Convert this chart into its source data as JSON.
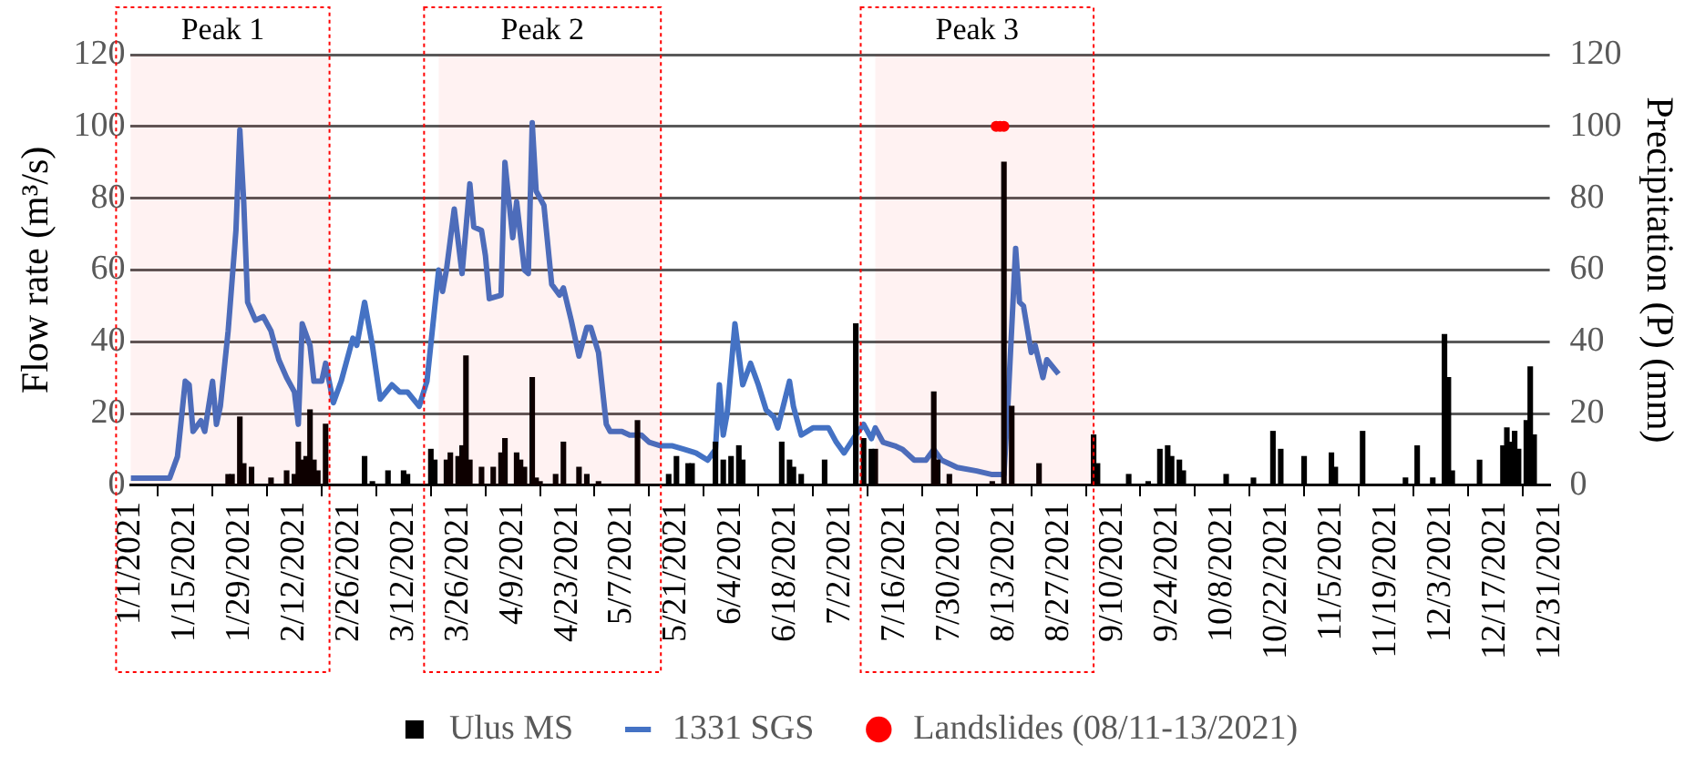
{
  "chart_data": {
    "type": "line",
    "ylabel": "Flow rate (m³/s)",
    "y2label": "Precipitation (P) (mm)",
    "xlim": [
      "2021-01-01",
      "2021-12-31"
    ],
    "xticks": [
      {
        "value": "2021-01-01",
        "label": "1/1/2021"
      },
      {
        "value": "2021-01-15",
        "label": "1/15/2021"
      },
      {
        "value": "2021-01-29",
        "label": "1/29/2021"
      },
      {
        "value": "2021-02-12",
        "label": "2/12/2021"
      },
      {
        "value": "2021-02-26",
        "label": "2/26/2021"
      },
      {
        "value": "2021-03-12",
        "label": "3/12/2021"
      },
      {
        "value": "2021-03-26",
        "label": "3/26/2021"
      },
      {
        "value": "2021-04-09",
        "label": "4/9/2021"
      },
      {
        "value": "2021-04-23",
        "label": "4/23/2021"
      },
      {
        "value": "2021-05-07",
        "label": "5/7/2021"
      },
      {
        "value": "2021-05-21",
        "label": "5/21/2021"
      },
      {
        "value": "2021-06-04",
        "label": "6/4/2021"
      },
      {
        "value": "2021-06-18",
        "label": "6/18/2021"
      },
      {
        "value": "2021-07-02",
        "label": "7/2/2021"
      },
      {
        "value": "2021-07-16",
        "label": "7/16/2021"
      },
      {
        "value": "2021-07-30",
        "label": "7/30/2021"
      },
      {
        "value": "2021-08-13",
        "label": "8/13/2021"
      },
      {
        "value": "2021-08-27",
        "label": "8/27/2021"
      },
      {
        "value": "2021-09-10",
        "label": "9/10/2021"
      },
      {
        "value": "2021-09-24",
        "label": "9/24/2021"
      },
      {
        "value": "2021-10-08",
        "label": "10/8/2021"
      },
      {
        "value": "2021-10-22",
        "label": "10/22/2021"
      },
      {
        "value": "2021-11-05",
        "label": "11/5/2021"
      },
      {
        "value": "2021-11-19",
        "label": "11/19/2021"
      },
      {
        "value": "2021-12-03",
        "label": "12/3/2021"
      },
      {
        "value": "2021-12-17",
        "label": "12/17/2021"
      },
      {
        "value": "2021-12-31",
        "label": "12/31/2021"
      }
    ],
    "ylim": [
      0,
      120
    ],
    "yticks": [
      0,
      20,
      40,
      60,
      80,
      100,
      120
    ],
    "y2lim": [
      0,
      120
    ],
    "y2ticks": [
      0,
      20,
      40,
      60,
      80,
      100,
      120
    ],
    "grid": "y",
    "legend": "bottom",
    "bands": [
      {
        "axis": "x",
        "from": "2021-01-01",
        "to": "2021-02-21",
        "label": "Peak 1",
        "color": "#ff0000"
      },
      {
        "axis": "x",
        "from": "2021-03-21",
        "to": "2021-05-17",
        "label": "Peak 2",
        "color": "#ff0000"
      },
      {
        "axis": "x",
        "from": "2021-07-11",
        "to": "2021-09-05",
        "label": "Peak 3",
        "color": "#ff0000"
      }
    ],
    "series": [
      {
        "name": "Ulus MS",
        "type": "bar",
        "color": "#000000",
        "x": [
          "2021-01-26",
          "2021-01-27",
          "2021-01-29",
          "2021-01-30",
          "2021-02-01",
          "2021-02-06",
          "2021-02-10",
          "2021-02-12",
          "2021-02-13",
          "2021-02-14",
          "2021-02-15",
          "2021-02-16",
          "2021-02-17",
          "2021-02-18",
          "2021-02-20",
          "2021-03-02",
          "2021-03-04",
          "2021-03-08",
          "2021-03-12",
          "2021-03-13",
          "2021-03-19",
          "2021-03-20",
          "2021-03-23",
          "2021-03-24",
          "2021-03-26",
          "2021-03-27",
          "2021-03-28",
          "2021-03-29",
          "2021-04-01",
          "2021-04-04",
          "2021-04-06",
          "2021-04-07",
          "2021-04-10",
          "2021-04-11",
          "2021-04-12",
          "2021-04-14",
          "2021-04-15",
          "2021-04-16",
          "2021-04-20",
          "2021-04-22",
          "2021-04-26",
          "2021-04-28",
          "2021-05-01",
          "2021-05-11",
          "2021-05-19",
          "2021-05-21",
          "2021-05-24",
          "2021-05-25",
          "2021-05-31",
          "2021-06-02",
          "2021-06-04",
          "2021-06-06",
          "2021-06-07",
          "2021-06-17",
          "2021-06-19",
          "2021-06-20",
          "2021-06-22",
          "2021-06-28",
          "2021-07-06",
          "2021-07-08",
          "2021-07-10",
          "2021-07-11",
          "2021-07-26",
          "2021-07-27",
          "2021-07-30",
          "2021-08-10",
          "2021-08-13",
          "2021-08-15",
          "2021-08-22",
          "2021-09-05",
          "2021-09-06",
          "2021-09-14",
          "2021-09-19",
          "2021-09-22",
          "2021-09-24",
          "2021-09-25",
          "2021-09-27",
          "2021-09-28",
          "2021-10-09",
          "2021-10-16",
          "2021-10-21",
          "2021-10-23",
          "2021-10-29",
          "2021-11-05",
          "2021-11-06",
          "2021-11-13",
          "2021-11-24",
          "2021-11-27",
          "2021-12-01",
          "2021-12-04",
          "2021-12-05",
          "2021-12-06",
          "2021-12-13",
          "2021-12-19",
          "2021-12-20",
          "2021-12-21",
          "2021-12-22",
          "2021-12-23",
          "2021-12-25",
          "2021-12-26",
          "2021-12-27"
        ],
        "values": [
          3,
          3,
          19,
          6,
          5,
          2,
          4,
          3,
          12,
          7,
          8,
          21,
          7,
          4,
          17,
          8,
          1,
          4,
          4,
          3,
          10,
          7,
          7,
          9,
          8,
          11,
          36,
          7,
          5,
          5,
          9,
          13,
          9,
          7,
          5,
          30,
          2,
          1,
          3,
          12,
          5,
          3,
          1,
          18,
          3,
          8,
          6,
          6,
          12,
          7,
          8,
          11,
          7,
          12,
          7,
          5,
          3,
          7,
          45,
          13,
          10,
          10,
          26,
          7,
          3,
          1,
          90,
          22,
          6,
          14,
          6,
          3,
          1,
          10,
          11,
          8,
          7,
          4,
          3,
          2,
          15,
          10,
          8,
          9,
          5,
          15,
          2,
          11,
          2,
          42,
          30,
          4,
          7,
          11,
          16,
          12,
          15,
          10,
          18,
          33,
          14
        ]
      },
      {
        "name": "1331 SGS",
        "color": "#4472c4",
        "marker": "none",
        "x": [
          "2021-01-01",
          "2021-01-11",
          "2021-01-13",
          "2021-01-15",
          "2021-01-16",
          "2021-01-17",
          "2021-01-19",
          "2021-01-20",
          "2021-01-22",
          "2021-01-23",
          "2021-01-24",
          "2021-01-26",
          "2021-01-28",
          "2021-01-29",
          "2021-01-30",
          "2021-01-31",
          "2021-02-02",
          "2021-02-04",
          "2021-02-06",
          "2021-02-08",
          "2021-02-10",
          "2021-02-12",
          "2021-02-13",
          "2021-02-14",
          "2021-02-16",
          "2021-02-17",
          "2021-02-19",
          "2021-02-20",
          "2021-02-22",
          "2021-02-24",
          "2021-02-27",
          "2021-02-28",
          "2021-03-02",
          "2021-03-04",
          "2021-03-06",
          "2021-03-09",
          "2021-03-11",
          "2021-03-13",
          "2021-03-16",
          "2021-03-18",
          "2021-03-21",
          "2021-03-22",
          "2021-03-23",
          "2021-03-25",
          "2021-03-27",
          "2021-03-29",
          "2021-03-30",
          "2021-04-01",
          "2021-04-02",
          "2021-04-03",
          "2021-04-06",
          "2021-04-07",
          "2021-04-09",
          "2021-04-10",
          "2021-04-12",
          "2021-04-13",
          "2021-04-14",
          "2021-04-15",
          "2021-04-17",
          "2021-04-19",
          "2021-04-21",
          "2021-04-22",
          "2021-04-24",
          "2021-04-26",
          "2021-04-28",
          "2021-04-29",
          "2021-05-01",
          "2021-05-03",
          "2021-05-04",
          "2021-05-07",
          "2021-05-09",
          "2021-05-12",
          "2021-05-14",
          "2021-05-17",
          "2021-05-20",
          "2021-05-23",
          "2021-05-26",
          "2021-05-29",
          "2021-05-31",
          "2021-06-01",
          "2021-06-02",
          "2021-06-03",
          "2021-06-05",
          "2021-06-07",
          "2021-06-09",
          "2021-06-11",
          "2021-06-13",
          "2021-06-15",
          "2021-06-16",
          "2021-06-19",
          "2021-06-20",
          "2021-06-22",
          "2021-06-25",
          "2021-06-29",
          "2021-07-01",
          "2021-07-03",
          "2021-07-06",
          "2021-07-08",
          "2021-07-10",
          "2021-07-11",
          "2021-07-13",
          "2021-07-16",
          "2021-07-18",
          "2021-07-21",
          "2021-07-24",
          "2021-07-26",
          "2021-07-28",
          "2021-08-01",
          "2021-08-06",
          "2021-08-10",
          "2021-08-13",
          "2021-08-14",
          "2021-08-16",
          "2021-08-17",
          "2021-08-18",
          "2021-08-20",
          "2021-08-21",
          "2021-08-23",
          "2021-08-24",
          "2021-08-27"
        ],
        "values": [
          2,
          2,
          8,
          29,
          28,
          15,
          18,
          15,
          29,
          17,
          22,
          43,
          71,
          99,
          79,
          51,
          46,
          47,
          43,
          35,
          30,
          26,
          17,
          45,
          39,
          29,
          29,
          34,
          23,
          29,
          41,
          39,
          51,
          39,
          24,
          28,
          26,
          26,
          22,
          29,
          60,
          54,
          60,
          77,
          59,
          84,
          72,
          71,
          64,
          52,
          53,
          90,
          69,
          79,
          60,
          59,
          101,
          82,
          78,
          56,
          53,
          55,
          46,
          36,
          44,
          44,
          37,
          17,
          15,
          15,
          14,
          14,
          12,
          11,
          11,
          10,
          9,
          7,
          10,
          28,
          14,
          20,
          45,
          28,
          34,
          28,
          21,
          19,
          16,
          29,
          22,
          14,
          16,
          16,
          12,
          9,
          14,
          17,
          13,
          16,
          12,
          11,
          10,
          7,
          7,
          10,
          7,
          5,
          4,
          3,
          3,
          22,
          66,
          51,
          50,
          37,
          39,
          30,
          35,
          31
        ]
      },
      {
        "name": "Landslides (08/11-13/2021)",
        "type": "scatter",
        "color": "#ff0000",
        "marker": "circle",
        "x": [
          "2021-08-11",
          "2021-08-12",
          "2021-08-13"
        ],
        "values": [
          100,
          100,
          100
        ]
      }
    ]
  }
}
